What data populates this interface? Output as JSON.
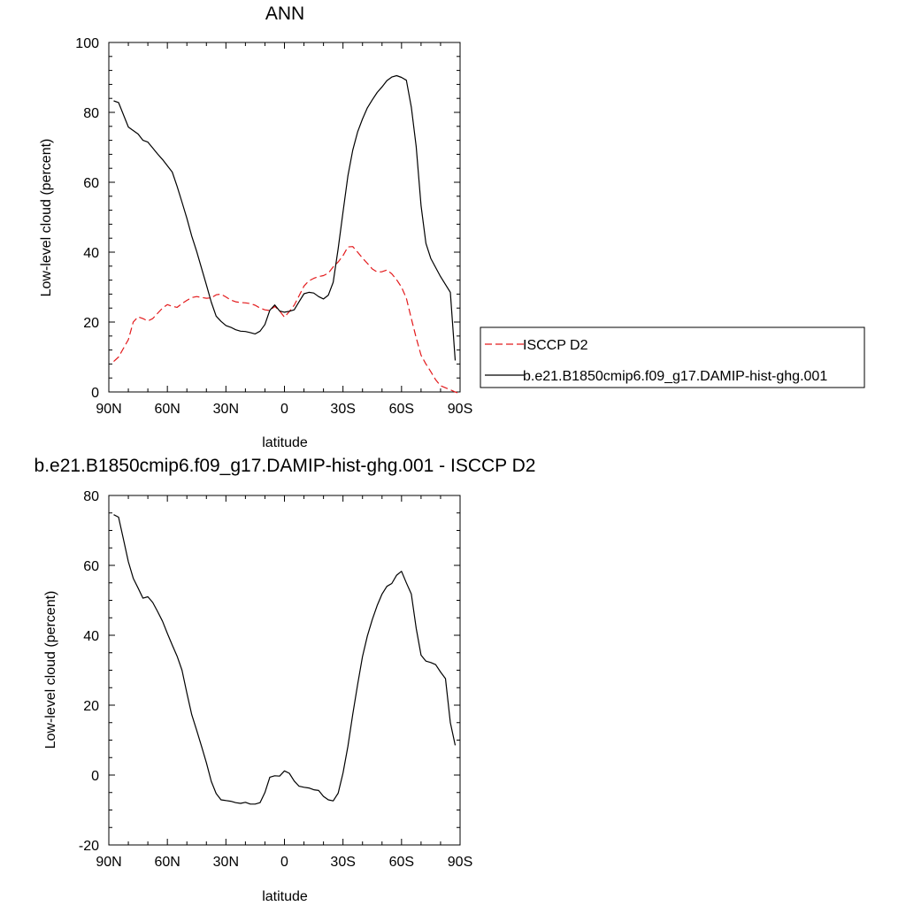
{
  "chart_data": [
    {
      "type": "line",
      "title": "ANN",
      "xlabel": "latitude",
      "ylabel": "Low-level cloud (percent)",
      "xlim": [
        90,
        -90
      ],
      "ylim": [
        0,
        100
      ],
      "xticks": [
        90,
        60,
        30,
        0,
        -30,
        -60,
        -90
      ],
      "xtick_labels": [
        "90N",
        "60N",
        "30N",
        "0",
        "30S",
        "60S",
        "90S"
      ],
      "yticks": [
        0,
        20,
        40,
        60,
        80,
        100
      ],
      "ytick_labels": [
        "0",
        "20",
        "40",
        "60",
        "80",
        "100"
      ],
      "legend_position": "right",
      "series": [
        {
          "name": "ISCCP D2",
          "color": "#e31a1c",
          "dash": "dashed",
          "x": [
            87.5,
            85,
            80,
            77.5,
            75,
            72.5,
            70,
            67.5,
            65,
            62.5,
            60,
            57.5,
            55,
            52.5,
            50,
            47.5,
            45,
            40,
            37.5,
            35,
            32.5,
            30,
            27.5,
            25,
            22.5,
            20,
            17.5,
            15,
            12.5,
            10,
            7.5,
            5,
            2.5,
            0,
            -2.5,
            -5,
            -7.5,
            -10,
            -12.5,
            -15,
            -17.5,
            -20,
            -22.5,
            -25,
            -27.5,
            -30,
            -32.5,
            -35,
            -37.5,
            -40,
            -42.5,
            -45,
            -47.5,
            -50,
            -52.5,
            -55,
            -57.5,
            -60,
            -62.5,
            -65,
            -67.5,
            -70,
            -72.5,
            -75,
            -77.5,
            -80,
            -85,
            -87.5,
            -89
          ],
          "y": [
            8.7,
            10,
            15,
            20,
            21.5,
            21,
            20.3,
            21,
            22.5,
            24,
            25,
            24.5,
            24.2,
            25.3,
            26.2,
            27,
            27.3,
            26.8,
            26.9,
            27.8,
            28,
            27.2,
            26.3,
            25.8,
            25.6,
            25.5,
            25.3,
            24.8,
            24,
            23.5,
            23.3,
            24.5,
            23.2,
            21.4,
            23,
            24.8,
            27.5,
            30.3,
            31.8,
            32.5,
            33,
            33.3,
            34,
            35.8,
            37.2,
            39,
            41.5,
            41.6,
            40,
            38.3,
            36.8,
            35.2,
            34.3,
            34.4,
            34.9,
            33.8,
            32.1,
            30,
            26.8,
            21,
            15.5,
            10.5,
            8,
            5.8,
            3.5,
            1.8,
            0.6,
            0,
            -0.3
          ]
        },
        {
          "name": "b.e21.B1850cmip6.f09_g17.DAMIP-hist-ghg.001",
          "color": "#000000",
          "dash": "solid",
          "x": [
            87.5,
            85,
            80,
            75,
            72.5,
            70,
            67.5,
            65,
            62.5,
            60,
            57.5,
            55,
            52.5,
            50,
            47.5,
            45,
            42.5,
            40,
            37.5,
            35,
            32.5,
            30,
            27.5,
            25,
            22.5,
            20,
            17.5,
            15,
            12.5,
            10,
            7.5,
            5,
            2.5,
            0,
            -2.5,
            -5,
            -7.5,
            -10,
            -12.5,
            -15,
            -17.5,
            -20,
            -22.5,
            -25,
            -27.5,
            -30,
            -32.5,
            -35,
            -37.5,
            -40,
            -42.5,
            -45,
            -47.5,
            -50,
            -52.5,
            -55,
            -57.5,
            -60,
            -62.5,
            -65,
            -67.5,
            -70,
            -72.5,
            -75,
            -80,
            -85,
            -87.5
          ],
          "y": [
            83.3,
            82.8,
            75.8,
            73.8,
            72,
            71.5,
            69.8,
            68.1,
            66.5,
            64.7,
            62.9,
            58.8,
            54.3,
            49.7,
            44.6,
            40.2,
            35.4,
            30.6,
            25.7,
            21.7,
            20.2,
            19,
            18.5,
            17.8,
            17.4,
            17.3,
            17,
            16.6,
            17.4,
            19.3,
            23.4,
            24.9,
            23.2,
            22.8,
            23.1,
            23.5,
            25.8,
            28.1,
            28.5,
            28.3,
            27.3,
            26.6,
            27.7,
            31.4,
            41,
            51.5,
            61.8,
            69.2,
            74.4,
            78.1,
            81.3,
            83.6,
            85.7,
            87.3,
            89.1,
            90.1,
            90.5,
            90,
            89.2,
            81.5,
            70.2,
            53.3,
            42.5,
            38.2,
            33,
            28.5,
            9
          ]
        }
      ]
    },
    {
      "type": "line",
      "title": "b.e21.B1850cmip6.f09_g17.DAMIP-hist-ghg.001 - ISCCP D2",
      "xlabel": "latitude",
      "ylabel": "Low-level cloud (percent)",
      "xlim": [
        90,
        -90
      ],
      "ylim": [
        -20,
        80
      ],
      "xticks": [
        90,
        60,
        30,
        0,
        -30,
        -60,
        -90
      ],
      "xtick_labels": [
        "90N",
        "60N",
        "30N",
        "0",
        "30S",
        "60S",
        "90S"
      ],
      "yticks": [
        -20,
        0,
        20,
        40,
        60,
        80
      ],
      "ytick_labels": [
        "-20",
        "0",
        "20",
        "40",
        "60",
        "80"
      ],
      "series": [
        {
          "color": "#000000",
          "dash": "solid",
          "x": [
            87.5,
            85,
            82.5,
            80,
            77.5,
            75,
            72.5,
            70,
            67.5,
            65,
            62.5,
            60,
            57.5,
            55,
            52.5,
            50,
            47.5,
            45,
            42.5,
            40,
            37.5,
            35,
            32.5,
            30,
            27.5,
            25,
            22.5,
            20,
            17.5,
            15,
            12.5,
            10,
            7.5,
            5,
            2.5,
            0,
            -2.5,
            -5,
            -7.5,
            -10,
            -12.5,
            -15,
            -17.5,
            -20,
            -22.5,
            -25,
            -27.5,
            -30,
            -32.5,
            -35,
            -37.5,
            -40,
            -42.5,
            -45,
            -47.5,
            -50,
            -52.5,
            -55,
            -57.5,
            -60,
            -62.5,
            -65,
            -67.5,
            -70,
            -72.5,
            -75,
            -77.5,
            -80,
            -82.5,
            -85,
            -87.5
          ],
          "y": [
            74.5,
            73.8,
            67.5,
            61,
            56.3,
            53.5,
            50.6,
            51,
            49.4,
            46.8,
            44,
            40.5,
            37.2,
            34,
            30,
            23.5,
            17.3,
            12.8,
            8.2,
            3.5,
            -1.8,
            -5.3,
            -7.1,
            -7.3,
            -7.5,
            -7.9,
            -8.1,
            -7.8,
            -8.3,
            -8.3,
            -7.9,
            -5,
            -0.6,
            -0.2,
            -0.3,
            1.2,
            0.5,
            -1.7,
            -3.2,
            -3.5,
            -3.7,
            -4.2,
            -4.4,
            -6.1,
            -7.1,
            -7.4,
            -5.2,
            0.6,
            8.2,
            17.4,
            25.9,
            33.9,
            39.8,
            44.5,
            48.5,
            51.8,
            54,
            54.8,
            57.2,
            58.3,
            55,
            51.8,
            42,
            34.3,
            32.6,
            32.2,
            31.6,
            29.5,
            27.6,
            15,
            8.5
          ]
        }
      ]
    }
  ]
}
